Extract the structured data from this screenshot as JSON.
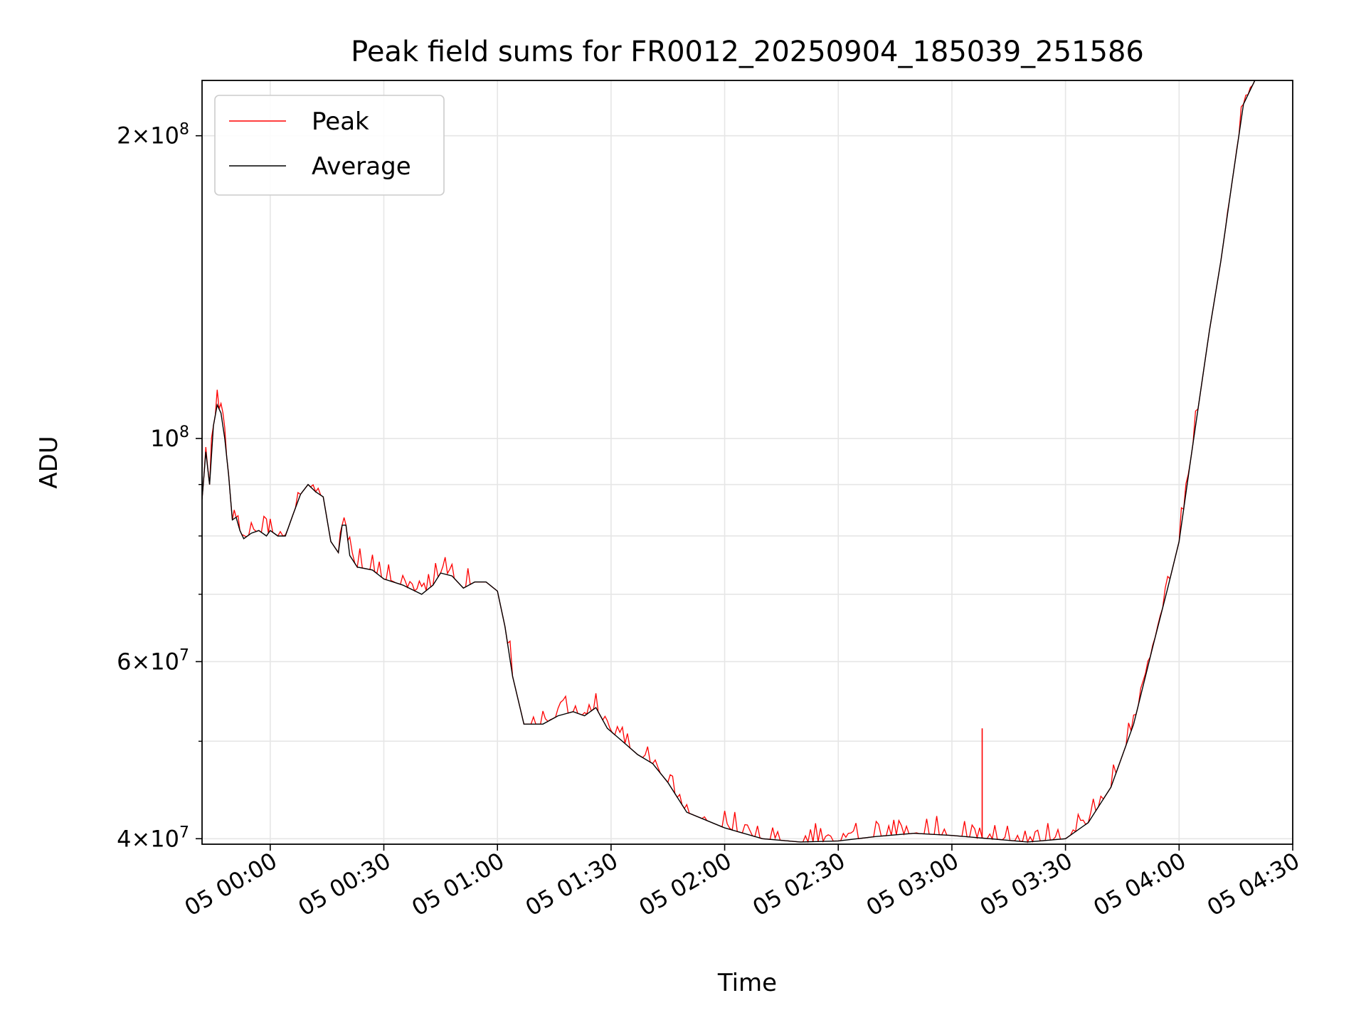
{
  "chart_data": {
    "type": "line",
    "title": "Peak field sums for FR0012_20250904_185039_251586",
    "xlabel": "Time",
    "ylabel": "ADU",
    "yscale": "log",
    "grid": true,
    "legend_position": "upper-left",
    "xlim": [
      "2025-09-04T23:42",
      "2025-09-05T04:30"
    ],
    "ylim": [
      39500000,
      227000000
    ],
    "x_ticks": [
      {
        "value": "2025-09-05T00:00",
        "label": "05 00:00"
      },
      {
        "value": "2025-09-05T00:30",
        "label": "05 00:30"
      },
      {
        "value": "2025-09-05T01:00",
        "label": "05 01:00"
      },
      {
        "value": "2025-09-05T01:30",
        "label": "05 01:30"
      },
      {
        "value": "2025-09-05T02:00",
        "label": "05 02:00"
      },
      {
        "value": "2025-09-05T02:30",
        "label": "05 02:30"
      },
      {
        "value": "2025-09-05T03:00",
        "label": "05 03:00"
      },
      {
        "value": "2025-09-05T03:30",
        "label": "05 03:30"
      },
      {
        "value": "2025-09-05T04:00",
        "label": "05 04:00"
      },
      {
        "value": "2025-09-05T04:30",
        "label": "05 04:30"
      }
    ],
    "y_major_ticks": [
      {
        "value": 40000000,
        "mantissa": "4",
        "exp": "7"
      },
      {
        "value": 60000000,
        "mantissa": "6",
        "exp": "7"
      },
      {
        "value": 100000000,
        "mantissa": "",
        "exp": "8"
      },
      {
        "value": 200000000,
        "mantissa": "2",
        "exp": "8"
      }
    ],
    "y_minor_ticks": [
      50000000,
      70000000,
      80000000,
      90000000
    ],
    "series": [
      {
        "name": "Peak",
        "color": "#ff0000",
        "spikes": [
          {
            "x": "2025-09-05T03:08",
            "y": 51500000
          }
        ]
      },
      {
        "name": "Average",
        "color": "#000000",
        "points": [
          [
            "2025-09-04T23:42",
            87000000
          ],
          [
            "2025-09-04T23:43",
            97000000
          ],
          [
            "2025-09-04T23:44",
            90000000
          ],
          [
            "2025-09-04T23:45",
            103000000
          ],
          [
            "2025-09-04T23:46",
            108000000
          ],
          [
            "2025-09-04T23:47",
            106000000
          ],
          [
            "2025-09-04T23:48",
            100000000
          ],
          [
            "2025-09-04T23:49",
            92000000
          ],
          [
            "2025-09-04T23:50",
            83000000
          ],
          [
            "2025-09-04T23:51",
            83500000
          ],
          [
            "2025-09-04T23:52",
            81000000
          ],
          [
            "2025-09-04T23:53",
            79500000
          ],
          [
            "2025-09-04T23:55",
            80500000
          ],
          [
            "2025-09-04T23:57",
            81000000
          ],
          [
            "2025-09-04T23:59",
            80000000
          ],
          [
            "2025-09-05T00:00",
            81000000
          ],
          [
            "2025-09-05T00:02",
            80000000
          ],
          [
            "2025-09-05T00:04",
            80000000
          ],
          [
            "2025-09-05T00:06",
            84000000
          ],
          [
            "2025-09-05T00:08",
            88000000
          ],
          [
            "2025-09-05T00:10",
            90000000
          ],
          [
            "2025-09-05T00:12",
            88500000
          ],
          [
            "2025-09-05T00:14",
            87500000
          ],
          [
            "2025-09-05T00:16",
            79000000
          ],
          [
            "2025-09-05T00:18",
            77000000
          ],
          [
            "2025-09-05T00:19",
            82000000
          ],
          [
            "2025-09-05T00:20",
            82000000
          ],
          [
            "2025-09-05T00:21",
            76500000
          ],
          [
            "2025-09-05T00:23",
            74500000
          ],
          [
            "2025-09-05T00:27",
            74000000
          ],
          [
            "2025-09-05T00:30",
            72500000
          ],
          [
            "2025-09-05T00:35",
            71500000
          ],
          [
            "2025-09-05T00:40",
            70000000
          ],
          [
            "2025-09-05T00:43",
            71500000
          ],
          [
            "2025-09-05T00:45",
            73500000
          ],
          [
            "2025-09-05T00:48",
            73000000
          ],
          [
            "2025-09-05T00:51",
            71000000
          ],
          [
            "2025-09-05T00:54",
            72000000
          ],
          [
            "2025-09-05T00:57",
            72000000
          ],
          [
            "2025-09-05T01:00",
            70500000
          ],
          [
            "2025-09-05T01:02",
            65000000
          ],
          [
            "2025-09-05T01:04",
            58000000
          ],
          [
            "2025-09-05T01:07",
            52000000
          ],
          [
            "2025-09-05T01:12",
            52000000
          ],
          [
            "2025-09-05T01:16",
            53000000
          ],
          [
            "2025-09-05T01:20",
            53500000
          ],
          [
            "2025-09-05T01:23",
            53000000
          ],
          [
            "2025-09-05T01:26",
            54000000
          ],
          [
            "2025-09-05T01:29",
            51500000
          ],
          [
            "2025-09-05T01:33",
            50000000
          ],
          [
            "2025-09-05T01:37",
            48500000
          ],
          [
            "2025-09-05T01:41",
            47500000
          ],
          [
            "2025-09-05T01:45",
            45500000
          ],
          [
            "2025-09-05T01:50",
            42500000
          ],
          [
            "2025-09-05T02:00",
            41000000
          ],
          [
            "2025-09-05T02:10",
            40000000
          ],
          [
            "2025-09-05T02:20",
            39700000
          ],
          [
            "2025-09-05T02:30",
            39800000
          ],
          [
            "2025-09-05T02:40",
            40200000
          ],
          [
            "2025-09-05T02:50",
            40500000
          ],
          [
            "2025-09-05T03:00",
            40300000
          ],
          [
            "2025-09-05T03:10",
            40000000
          ],
          [
            "2025-09-05T03:20",
            39700000
          ],
          [
            "2025-09-05T03:30",
            40000000
          ],
          [
            "2025-09-05T03:36",
            41500000
          ],
          [
            "2025-09-05T03:42",
            45000000
          ],
          [
            "2025-09-05T03:48",
            52000000
          ],
          [
            "2025-09-05T03:53",
            62000000
          ],
          [
            "2025-09-05T03:57",
            71000000
          ],
          [
            "2025-09-05T04:00",
            79000000
          ],
          [
            "2025-09-05T04:03",
            95000000
          ],
          [
            "2025-09-05T04:05",
            107000000
          ],
          [
            "2025-09-05T04:08",
            128000000
          ],
          [
            "2025-09-05T04:11",
            150000000
          ],
          [
            "2025-09-05T04:14",
            180000000
          ],
          [
            "2025-09-05T04:17",
            215000000
          ],
          [
            "2025-09-05T04:20",
            227000000
          ]
        ]
      }
    ]
  }
}
